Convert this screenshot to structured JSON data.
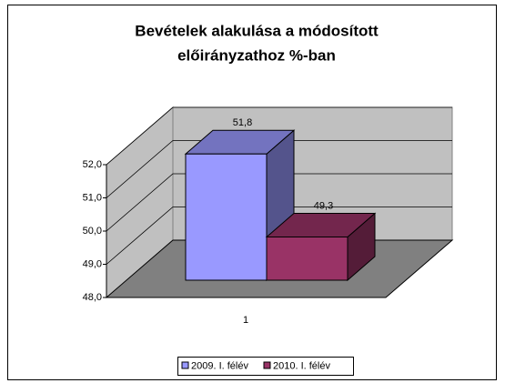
{
  "chart_data": {
    "type": "bar3d",
    "title": [
      "Bevételek alakulása a módosított",
      "előirányzathoz %-ban"
    ],
    "categories": [
      "1"
    ],
    "series": [
      {
        "name": "2009. I. félév",
        "color": "#9999ff",
        "values": [
          51.8
        ],
        "value_labels": [
          "51,8"
        ]
      },
      {
        "name": "2010. I. félév",
        "color": "#993366",
        "values": [
          49.3
        ],
        "value_labels": [
          "49,3"
        ]
      }
    ],
    "ylim": [
      48,
      52
    ],
    "yticks": [
      {
        "value": 48,
        "label": "48,0"
      },
      {
        "value": 49,
        "label": "49,0"
      },
      {
        "value": 50,
        "label": "50,0"
      },
      {
        "value": 51,
        "label": "51,0"
      },
      {
        "value": 52,
        "label": "52,0"
      }
    ],
    "grid": true,
    "legend": "bottom"
  }
}
